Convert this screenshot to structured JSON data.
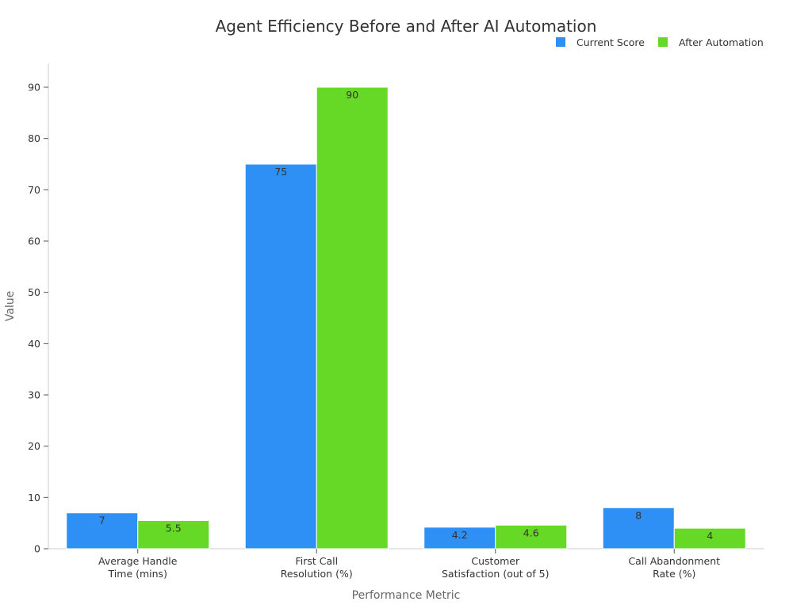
{
  "chart_data": {
    "type": "bar",
    "title": "Agent Efficiency Before and After AI Automation",
    "xlabel": "Performance Metric",
    "ylabel": "Value",
    "ylim": [
      0,
      95
    ],
    "yticks": [
      0,
      10,
      20,
      30,
      40,
      50,
      60,
      70,
      80,
      90
    ],
    "categories": [
      [
        "Average Handle",
        "Time (mins)"
      ],
      [
        "First Call",
        "Resolution (%)"
      ],
      [
        "Customer",
        "Satisfaction (out of 5)"
      ],
      [
        "Call Abandonment",
        "Rate (%)"
      ]
    ],
    "series": [
      {
        "name": "Current Score",
        "color": "#2e8ff5",
        "values": [
          7,
          75,
          4.2,
          8
        ],
        "labels": [
          "7",
          "75",
          "4.2",
          "8"
        ]
      },
      {
        "name": "After Automation",
        "color": "#66d926",
        "values": [
          5.5,
          90,
          4.6,
          4
        ],
        "labels": [
          "5.5",
          "90",
          "4.6",
          "4"
        ]
      }
    ],
    "legend": "top-right",
    "grid": false
  }
}
